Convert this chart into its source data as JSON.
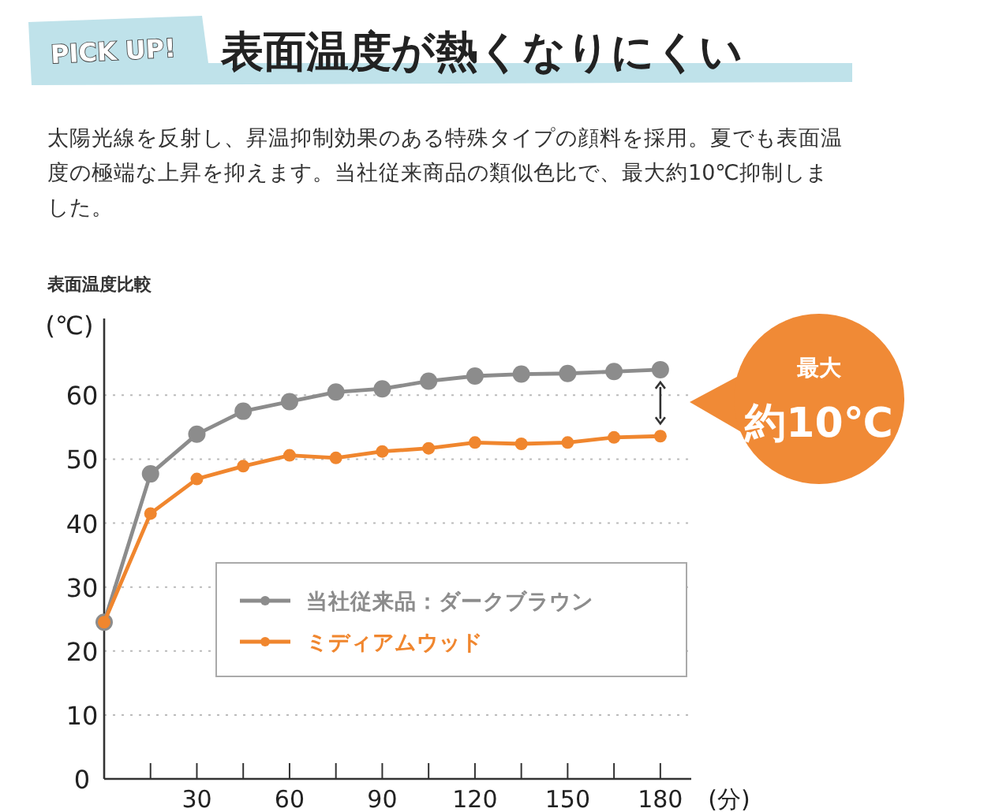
{
  "chart_data": {
    "type": "line",
    "title": "表面温度が熱くなりにくい",
    "subtitle": "太陽光線を反射し、昇温抑制効果のある特殊タイプの顔料を採用。夏でも表面温度の極端な上昇を抑えます。当社従来商品の類似色比で、最大約10℃抑制しました。",
    "annotations": [
      "PICK UP!",
      "表面温度比較",
      "最大",
      "約10℃"
    ],
    "xlabel": "(分)",
    "ylabel": "(℃)",
    "x": [
      0,
      15,
      30,
      45,
      60,
      75,
      90,
      105,
      120,
      135,
      150,
      165,
      180
    ],
    "series": [
      {
        "name": "当社従来品：ダークブラウン",
        "color": "#8c8c8c",
        "values": [
          24.5,
          47.7,
          53.9,
          57.5,
          59.0,
          60.5,
          61.0,
          62.2,
          63.0,
          63.3,
          63.4,
          63.7,
          64.0
        ]
      },
      {
        "name": "ミディアムウッド",
        "color": "#f0862e",
        "values": [
          24.5,
          41.5,
          46.9,
          48.9,
          50.6,
          50.2,
          51.2,
          51.7,
          52.6,
          52.4,
          52.6,
          53.4,
          53.6
        ]
      }
    ],
    "xlim": [
      0,
      190
    ],
    "ylim": [
      0,
      72
    ],
    "xticks": [
      {
        "value": 15,
        "label": null
      },
      30,
      {
        "value": 45,
        "label": null
      },
      60,
      {
        "value": 75,
        "label": null
      },
      90,
      {
        "value": 105,
        "label": null
      },
      120,
      {
        "value": 135,
        "label": null
      },
      150,
      {
        "value": 165,
        "label": null
      },
      180
    ],
    "yticks": [
      0,
      10,
      20,
      30,
      40,
      50,
      60
    ],
    "grid": "y",
    "legend": "center",
    "marker": "circle",
    "line_style": "solid"
  }
}
